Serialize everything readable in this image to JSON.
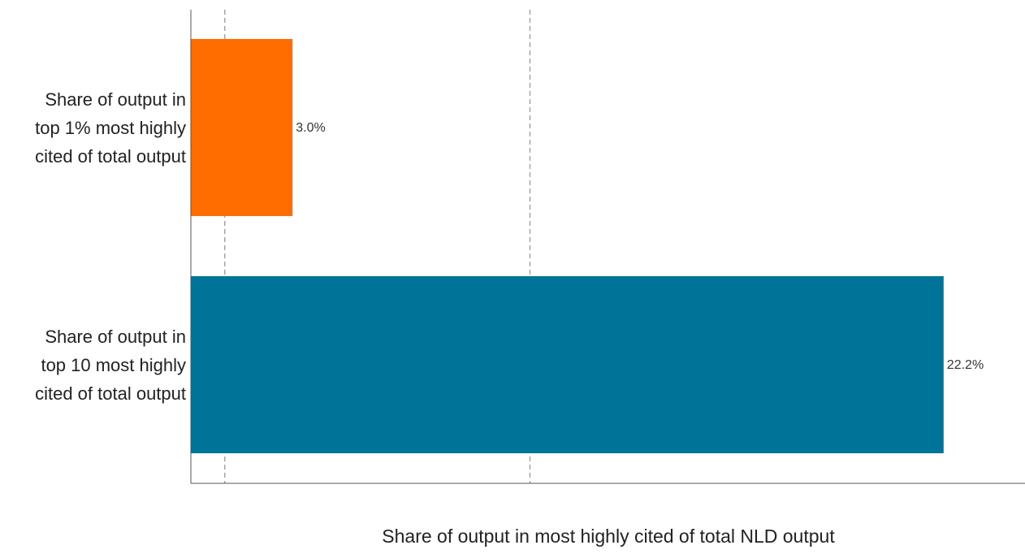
{
  "chart_data": {
    "type": "bar",
    "orientation": "horizontal",
    "categories": [
      "Share of output in top 1% most highly cited of total output",
      "Share of output in top 10 most highly cited of total output"
    ],
    "category_label_lines": [
      [
        "Share of output in",
        "top 1% most highly",
        "cited of total output"
      ],
      [
        "Share of output in",
        "top 10 most highly",
        "cited of total output"
      ]
    ],
    "values": [
      3.0,
      22.2
    ],
    "value_labels": [
      "3.0%",
      "22.2%"
    ],
    "bar_colors": [
      "#FF6C00",
      "#007398"
    ],
    "reference_lines": [
      1,
      10
    ],
    "xlabel": "Share of output in most highly cited of total NLD output",
    "ylabel": "",
    "title": "",
    "xlim": [
      0,
      24.6
    ],
    "grid": false,
    "legend": "none"
  }
}
